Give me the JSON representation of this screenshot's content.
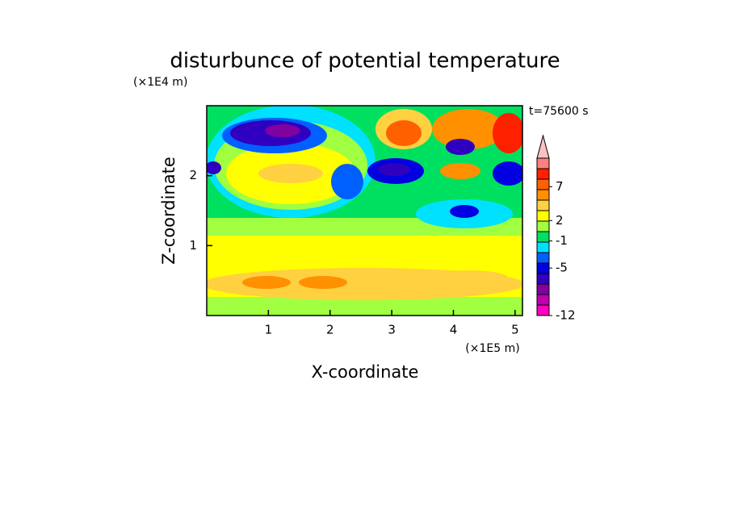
{
  "chart_data": {
    "type": "contour",
    "title": "disturbunce of potential temperature",
    "x_label": "X-coordinate",
    "y_label": "Z-coordinate",
    "x_unit": "(×1E5 m)",
    "y_unit": "(×1E4 m)",
    "time_label": "t=75600 s",
    "xlim": [
      0,
      5.12
    ],
    "xticks": [
      1,
      2,
      3,
      4,
      5
    ],
    "ylim": [
      0,
      3
    ],
    "yticks": [
      1,
      2
    ],
    "clim": [
      -12,
      11.2
    ],
    "cticks": [
      -12,
      -5,
      -1,
      2,
      7
    ],
    "colors": [
      "#ff00c0",
      "#c000b0",
      "#8000a0",
      "#3000c0",
      "#0000e0",
      "#0060ff",
      "#00e0ff",
      "#00e060",
      "#a0ff40",
      "#ffff00",
      "#ffd040",
      "#ff9000",
      "#ff6000",
      "#ff2000",
      "#ff8080",
      "#ffc0c0"
    ]
  }
}
